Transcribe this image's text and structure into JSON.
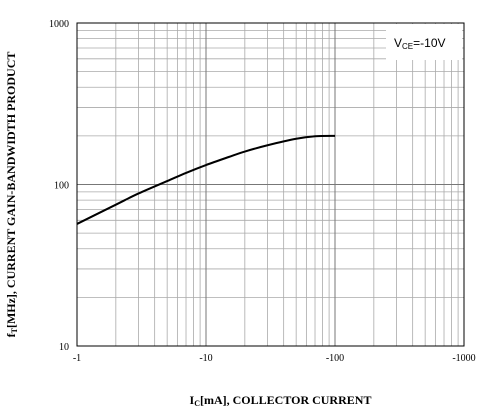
{
  "chart_data": {
    "type": "line",
    "title": "",
    "x_scale": "log",
    "y_scale": "log",
    "x": [
      -1,
      -2,
      -3,
      -5,
      -7,
      -10,
      -15,
      -20,
      -30,
      -50,
      -70,
      -100
    ],
    "series": [
      {
        "color": "#000000",
        "values": [
          57,
          75,
          88,
          105,
          118,
          132,
          148,
          160,
          175,
          192,
          199,
          200
        ]
      }
    ],
    "xlim": [
      -1,
      -1000
    ],
    "ylim": [
      10,
      1000
    ],
    "xticks": [
      {
        "value": -1,
        "label": "-1"
      },
      {
        "value": -10,
        "label": "-10"
      },
      {
        "value": -100,
        "label": "-100"
      },
      {
        "value": -1000,
        "label": "-1000"
      }
    ],
    "yticks": [
      {
        "value": 10,
        "label": "10"
      },
      {
        "value": 100,
        "label": "100"
      },
      {
        "value": 1000,
        "label": "1000"
      }
    ],
    "xlabel": {
      "prefix": "I",
      "sub": "C",
      "suffix": "[mA], COLLECTOR CURRENT"
    },
    "ylabel": {
      "prefix": "f",
      "sub": "T",
      "suffix": "[MHz], CURRENT GAIN-BANDWIDTH PRODUCT"
    },
    "annotation": {
      "prefix": "V",
      "sub": "CE",
      "suffix": "=-10V"
    },
    "grid": true,
    "legend": "none"
  }
}
